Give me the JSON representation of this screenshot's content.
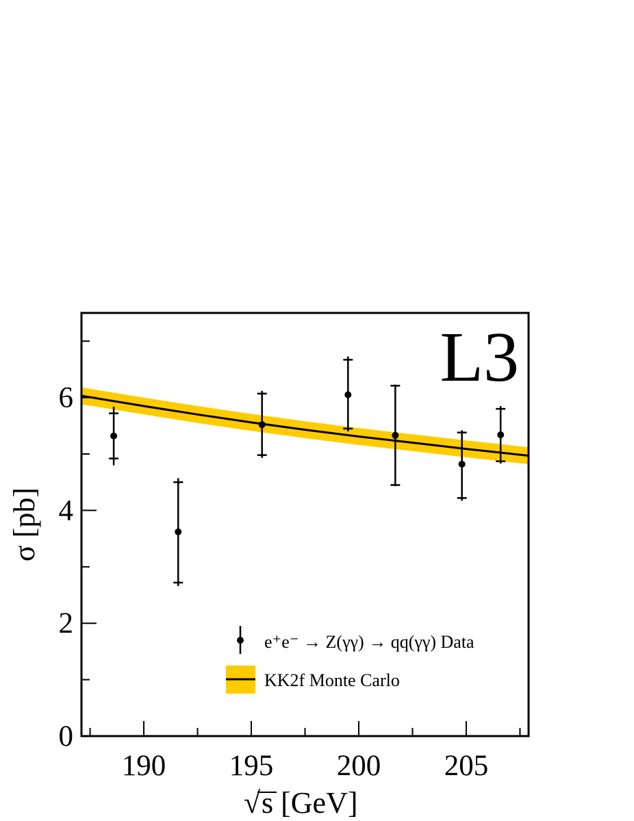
{
  "chart_data": {
    "type": "scatter",
    "experiment_label": "L3",
    "xlabel_prefix": "√",
    "xlabel": "s [GeV]",
    "ylabel": "σ [pb]",
    "xlim": [
      187.1,
      207.9
    ],
    "ylim": [
      0,
      7.5
    ],
    "x_ticks": [
      190,
      195,
      200,
      205
    ],
    "x_tick_labels": [
      "190",
      "195",
      "200",
      "205"
    ],
    "y_ticks": [
      0,
      2,
      4,
      6
    ],
    "y_tick_labels": [
      "0",
      "2",
      "4",
      "6"
    ],
    "grid": false,
    "legend_position": "bottom-center",
    "series": [
      {
        "name": "e⁺e⁻ → Z(γγ) → qq(γγ) Data",
        "kind": "points-with-errors",
        "points": [
          {
            "x": 188.6,
            "y": 5.32,
            "stat_lo": 4.92,
            "stat_hi": 5.72,
            "tot_lo": 4.8,
            "tot_hi": 5.84
          },
          {
            "x": 191.6,
            "y": 3.62,
            "stat_lo": 2.72,
            "stat_hi": 4.5,
            "tot_lo": 2.66,
            "tot_hi": 4.57
          },
          {
            "x": 195.5,
            "y": 5.52,
            "stat_lo": 4.98,
            "stat_hi": 6.07,
            "tot_lo": 4.93,
            "tot_hi": 6.12
          },
          {
            "x": 199.5,
            "y": 6.05,
            "stat_lo": 5.45,
            "stat_hi": 6.67,
            "tot_lo": 5.4,
            "tot_hi": 6.73
          },
          {
            "x": 201.7,
            "y": 5.33,
            "stat_lo": 4.45,
            "stat_hi": 6.21,
            "tot_lo": 4.43,
            "tot_hi": 6.23
          },
          {
            "x": 204.8,
            "y": 4.82,
            "stat_lo": 4.22,
            "stat_hi": 5.38,
            "tot_lo": 4.17,
            "tot_hi": 5.42
          },
          {
            "x": 206.6,
            "y": 5.34,
            "stat_lo": 4.87,
            "stat_hi": 5.8,
            "tot_lo": 4.83,
            "tot_hi": 5.85
          }
        ]
      },
      {
        "name": "KK2f Monte Carlo",
        "kind": "line-with-band",
        "color": "#000000",
        "band_color": "#FFCC00",
        "x": [
          187.1,
          190,
          192.5,
          195,
          197.5,
          200,
          202.5,
          205,
          207.9
        ],
        "y": [
          6.03,
          5.85,
          5.7,
          5.56,
          5.43,
          5.31,
          5.2,
          5.09,
          4.97
        ],
        "band_halfwidth": 0.15
      }
    ]
  }
}
